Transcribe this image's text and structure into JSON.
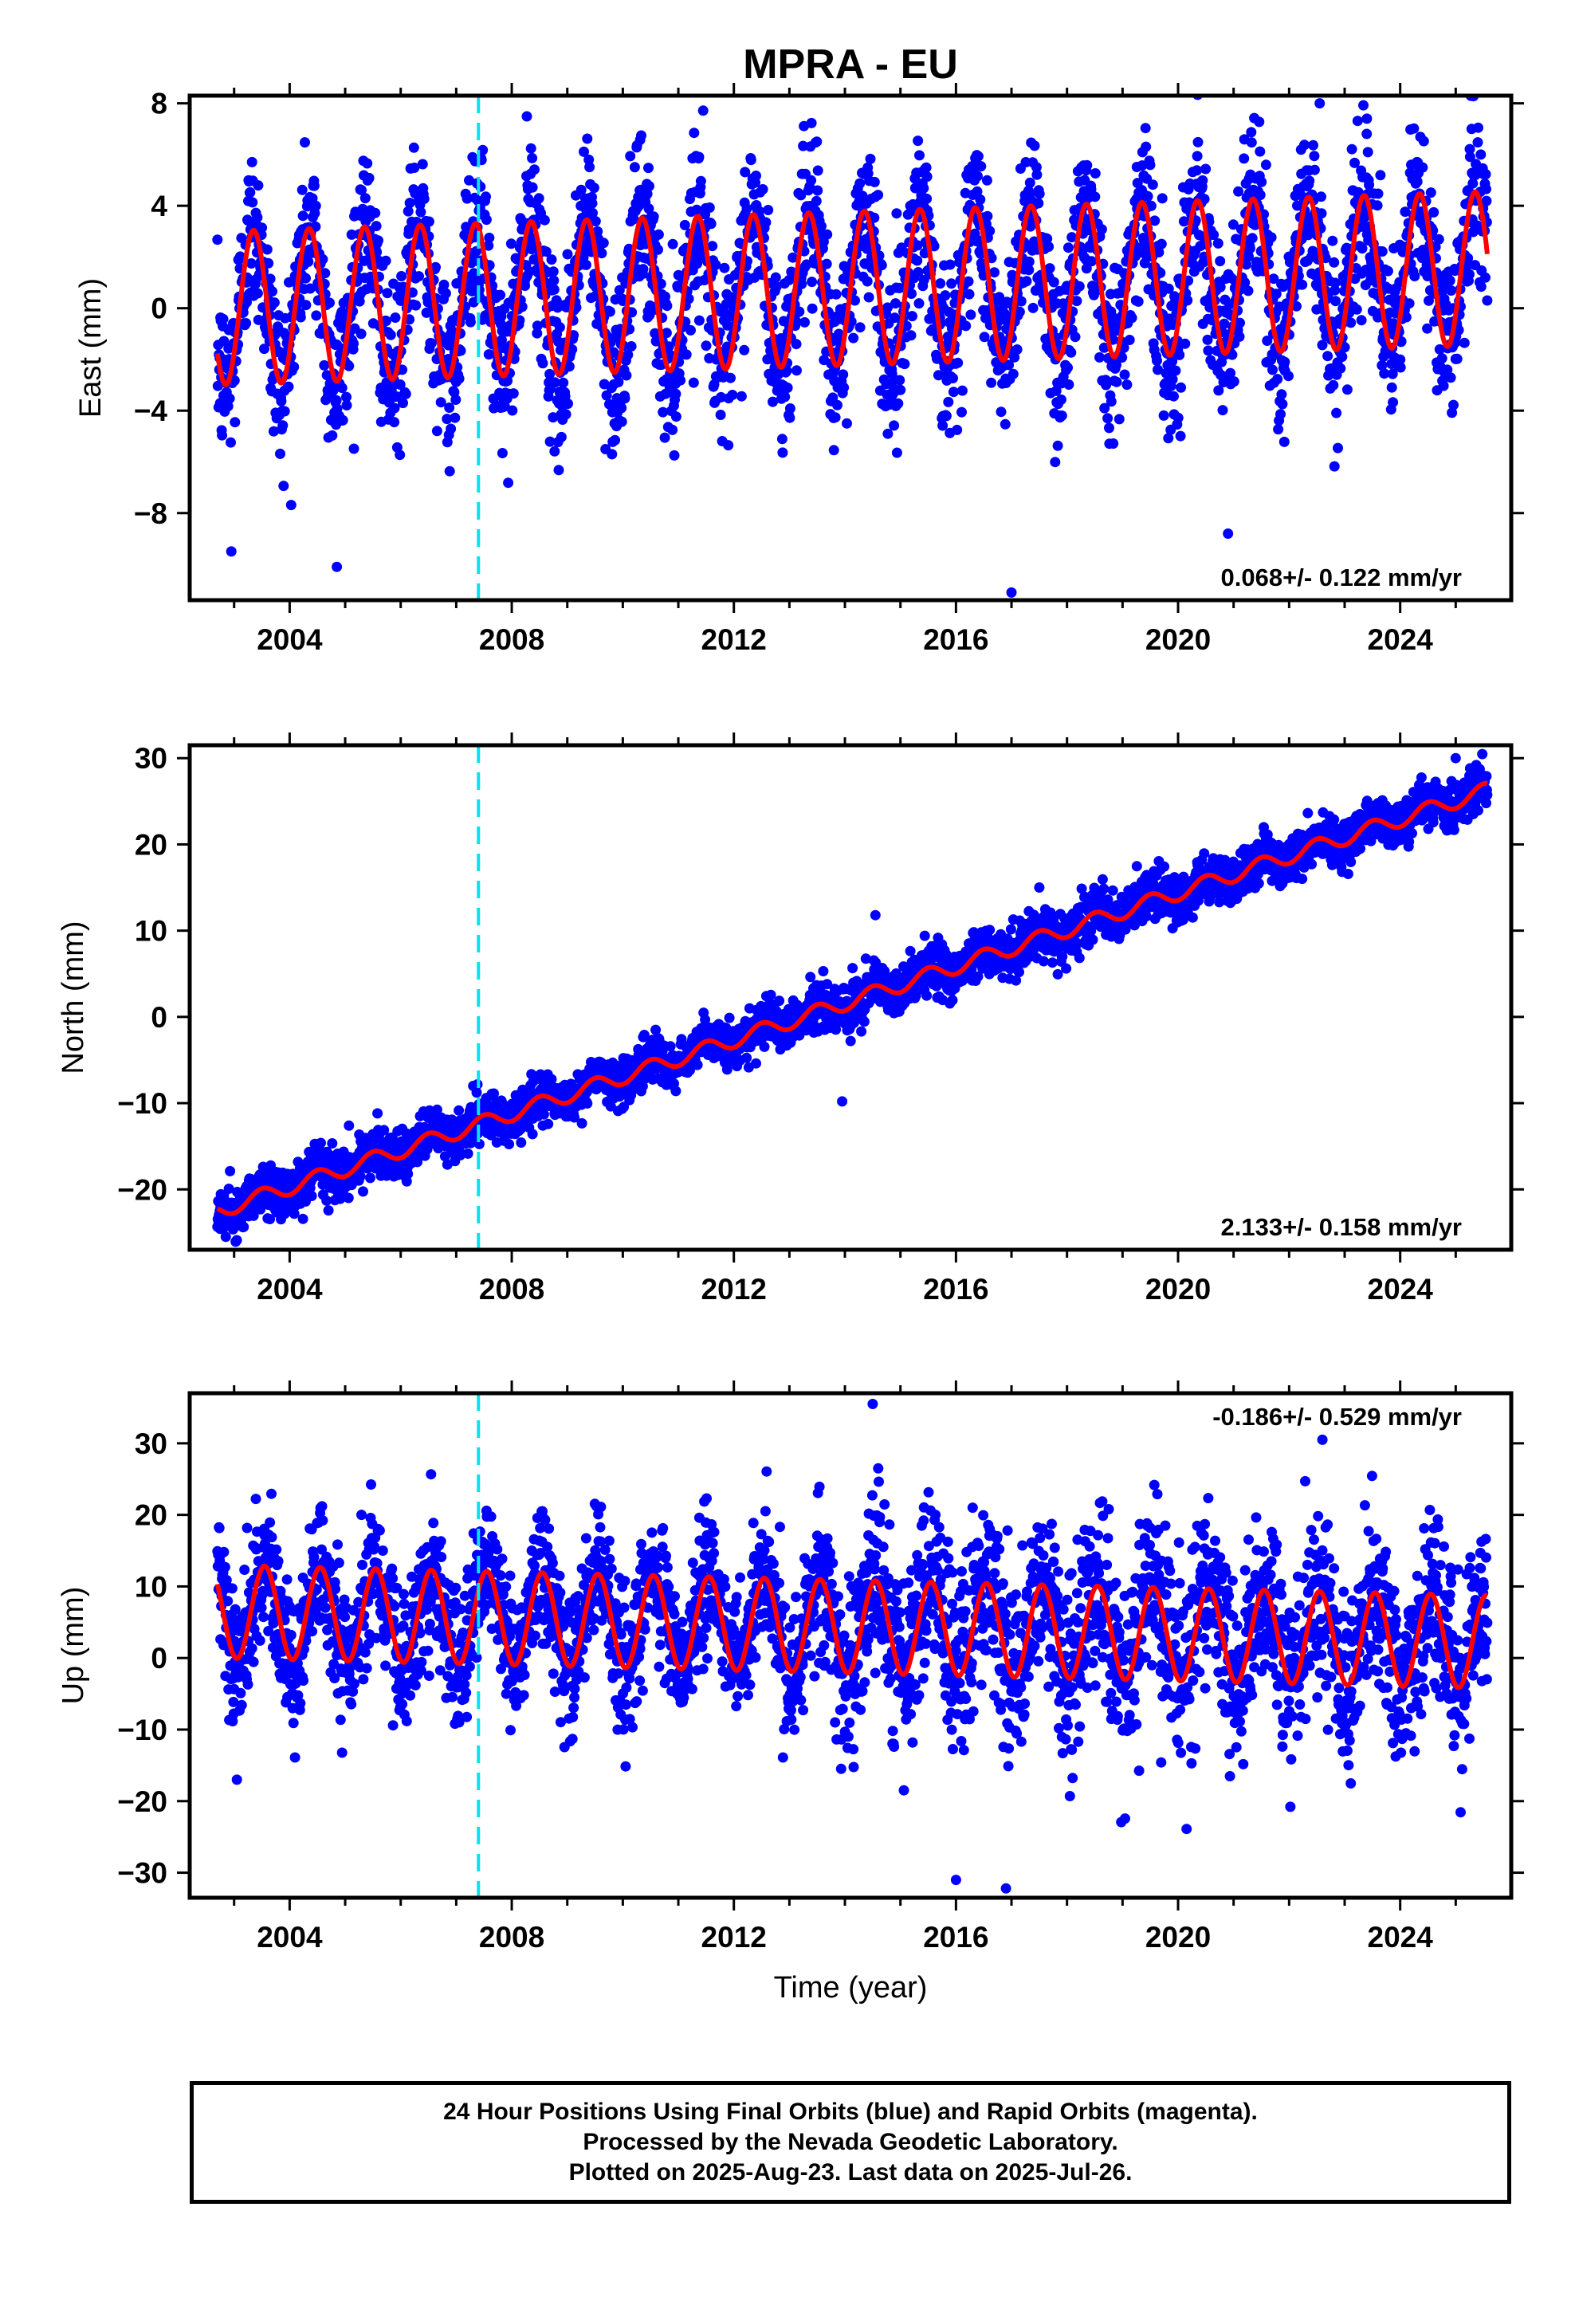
{
  "title": "MPRA - EU",
  "footer": {
    "line1": "24 Hour Positions Using Final Orbits (blue) and Rapid Orbits (magenta).",
    "line2": "Processed by the Nevada Geodetic Laboratory.",
    "line3": "Plotted on 2025-Aug-23. Last data on 2025-Jul-26."
  },
  "colors": {
    "points": "#0000ff",
    "model": "#ff0000",
    "event_line": "#00e5ee",
    "frame": "#000000"
  },
  "chart_data": [
    {
      "type": "scatter",
      "ylabel": "East (mm)",
      "xlim": [
        2002.2,
        2026.0
      ],
      "ylim": [
        -11.4,
        8.3
      ],
      "x_ticks": [
        2004,
        2008,
        2012,
        2016,
        2020,
        2024
      ],
      "y_ticks": [
        -8,
        -4,
        0,
        4,
        8
      ],
      "rate_label": "0.068+/- 0.122 mm/yr",
      "rate_position": "bottom-right",
      "event_line_x": 2007.4,
      "data_start": 2002.7,
      "data_end": 2025.57,
      "model": {
        "rate": 0.068,
        "offset": 0.0,
        "annual_amplitude": 3.0,
        "annual_phase_year": 2003.35,
        "noise_sd": 1.6
      },
      "notable_points": [
        {
          "x": 2002.95,
          "y": -9.5
        },
        {
          "x": 2004.85,
          "y": -10.1
        },
        {
          "x": 2017.0,
          "y": -11.1
        },
        {
          "x": 2020.9,
          "y": -8.8
        },
        {
          "x": 2022.55,
          "y": 8.0
        },
        {
          "x": 2023.4,
          "y": 7.4
        }
      ]
    },
    {
      "type": "scatter",
      "ylabel": "North (mm)",
      "xlim": [
        2002.2,
        2026.0
      ],
      "ylim": [
        -27,
        31.5
      ],
      "x_ticks": [
        2004,
        2008,
        2012,
        2016,
        2020,
        2024
      ],
      "y_ticks": [
        -20,
        -10,
        0,
        10,
        20,
        30
      ],
      "rate_label": "2.133+/- 0.158 mm/yr",
      "rate_position": "bottom-right",
      "event_line_x": 2007.4,
      "data_start": 2002.7,
      "data_end": 2025.57,
      "model": {
        "rate": 2.133,
        "offset": -22.5,
        "annual_amplitude": 0.9,
        "annual_phase_year": 2003.5,
        "noise_sd": 1.4
      },
      "notable_points": [
        {
          "x": 2014.55,
          "y": 11.8
        },
        {
          "x": 2017.5,
          "y": 15.0
        },
        {
          "x": 2025.0,
          "y": 30.0
        },
        {
          "x": 2013.95,
          "y": -9.8
        },
        {
          "x": 2002.85,
          "y": -25.5
        }
      ]
    },
    {
      "type": "scatter",
      "ylabel": "Up (mm)",
      "xlabel": "Time (year)",
      "xlim": [
        2002.2,
        2026.0
      ],
      "ylim": [
        -33.5,
        37
      ],
      "x_ticks": [
        2004,
        2008,
        2012,
        2016,
        2020,
        2024
      ],
      "y_ticks": [
        -30,
        -20,
        -10,
        0,
        10,
        20,
        30
      ],
      "rate_label": "-0.186+/- 0.529 mm/yr",
      "rate_position": "top-right",
      "event_line_x": 2007.4,
      "data_start": 2002.7,
      "data_end": 2025.57,
      "model": {
        "rate": -0.186,
        "offset": 6.5,
        "annual_amplitude": 6.5,
        "annual_phase_year": 2003.55,
        "noise_sd": 4.8
      },
      "notable_points": [
        {
          "x": 2014.5,
          "y": 35.5
        },
        {
          "x": 2014.6,
          "y": 26.5
        },
        {
          "x": 2022.6,
          "y": 30.5
        },
        {
          "x": 2016.0,
          "y": -31.0
        },
        {
          "x": 2016.9,
          "y": -32.2
        },
        {
          "x": 2003.05,
          "y": -17.0
        }
      ]
    }
  ]
}
